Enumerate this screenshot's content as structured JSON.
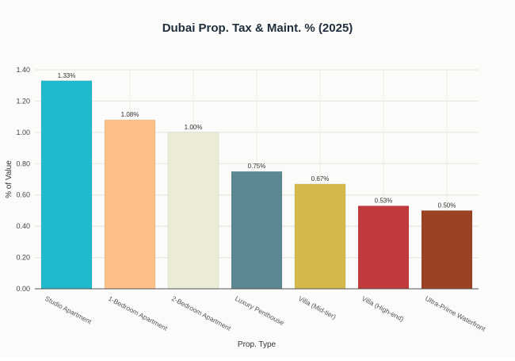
{
  "chart_data": {
    "type": "bar",
    "title": "Dubai Prop. Tax & Maint. % (2025)",
    "xlabel": "Prop. Type",
    "ylabel": "% of Value",
    "ylim": [
      0,
      1.4
    ],
    "yticks": [
      "0.00",
      "0.20",
      "0.40",
      "0.60",
      "0.80",
      "1.00",
      "1.20",
      "1.40"
    ],
    "grid": true,
    "legend": "none",
    "categories": [
      "Studio Apartment",
      "1-Bedroom Apartment",
      "2-Bedroom Apartment",
      "Luxury Penthouse",
      "Villa (Mid-tier)",
      "Villa (High-end)",
      "Ultra-Prime Waterfront"
    ],
    "values": [
      1.33,
      1.08,
      1.0,
      0.75,
      0.67,
      0.53,
      0.5
    ],
    "data_labels": [
      "1.33%",
      "1.08%",
      "1.00%",
      "0.75%",
      "0.67%",
      "0.53%",
      "0.50%"
    ],
    "colors": [
      "#1fb8cc",
      "#fdbf86",
      "#ebebd8",
      "#5b8891",
      "#d4b94a",
      "#c0393b",
      "#9a4223"
    ]
  }
}
